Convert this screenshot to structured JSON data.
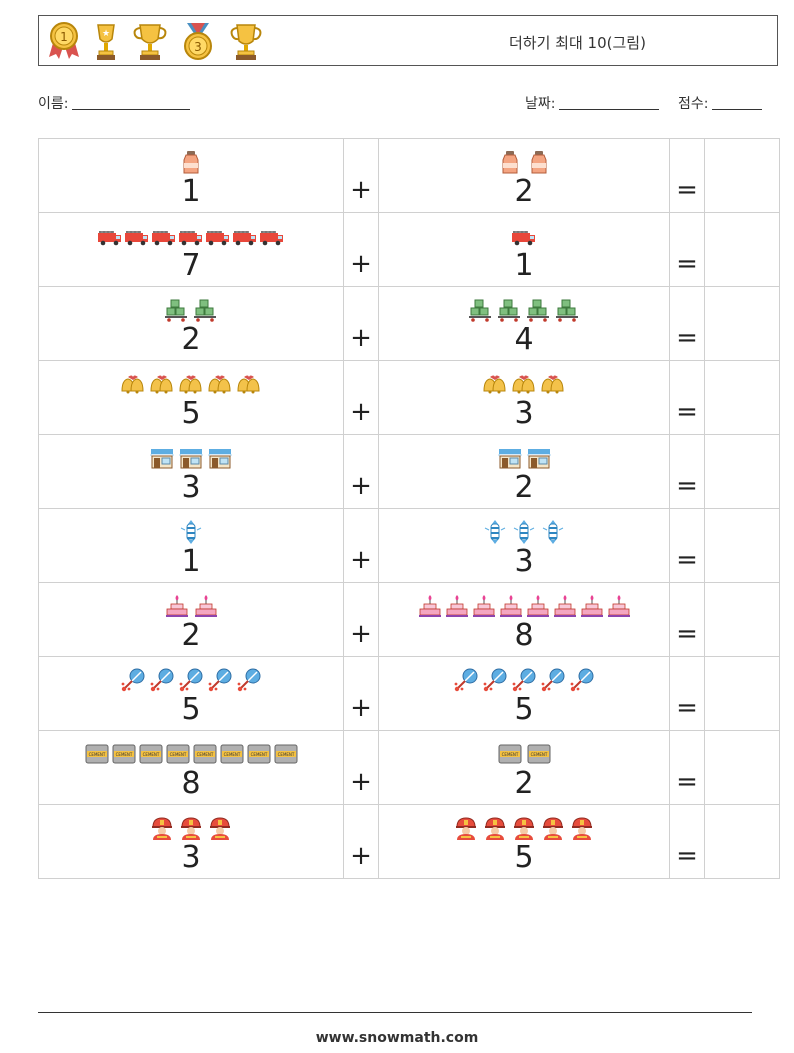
{
  "header": {
    "title": "더하기 최대 10(그림)",
    "trophy_icons": [
      "gold-medal-1-icon",
      "star-trophy-icon",
      "large-trophy-icon",
      "bronze-medal-3-icon",
      "cup-trophy-icon"
    ]
  },
  "fields": {
    "name_label": "이름:",
    "date_label": "날짜:",
    "score_label": "점수:"
  },
  "problems": [
    {
      "left": {
        "count": 1,
        "label": "1",
        "icon": "milk-bottle-icon"
      },
      "right": {
        "count": 2,
        "label": "2",
        "icon": "milk-bottle-icon"
      }
    },
    {
      "left": {
        "count": 7,
        "label": "7",
        "icon": "fire-truck-icon"
      },
      "right": {
        "count": 1,
        "label": "1",
        "icon": "fire-truck-icon"
      }
    },
    {
      "left": {
        "count": 2,
        "label": "2",
        "icon": "boxes-cart-icon"
      },
      "right": {
        "count": 4,
        "label": "4",
        "icon": "boxes-cart-icon"
      }
    },
    {
      "left": {
        "count": 5,
        "label": "5",
        "icon": "bells-icon"
      },
      "right": {
        "count": 3,
        "label": "3",
        "icon": "bells-icon"
      }
    },
    {
      "left": {
        "count": 3,
        "label": "3",
        "icon": "shop-icon"
      },
      "right": {
        "count": 2,
        "label": "2",
        "icon": "shop-icon"
      }
    },
    {
      "left": {
        "count": 1,
        "label": "1",
        "icon": "candy-icon"
      },
      "right": {
        "count": 3,
        "label": "3",
        "icon": "candy-icon"
      }
    },
    {
      "left": {
        "count": 2,
        "label": "2",
        "icon": "cake-icon"
      },
      "right": {
        "count": 8,
        "label": "8",
        "icon": "cake-icon"
      }
    },
    {
      "left": {
        "count": 5,
        "label": "5",
        "icon": "rattle-icon"
      },
      "right": {
        "count": 5,
        "label": "5",
        "icon": "rattle-icon"
      }
    },
    {
      "left": {
        "count": 8,
        "label": "8",
        "icon": "cement-bag-icon"
      },
      "right": {
        "count": 2,
        "label": "2",
        "icon": "cement-bag-icon"
      }
    },
    {
      "left": {
        "count": 3,
        "label": "3",
        "icon": "firefighter-icon"
      },
      "right": {
        "count": 5,
        "label": "5",
        "icon": "firefighter-icon"
      }
    }
  ],
  "plus_sign": "+",
  "equals_sign": "=",
  "footer": {
    "url": "www.snowmath.com"
  }
}
